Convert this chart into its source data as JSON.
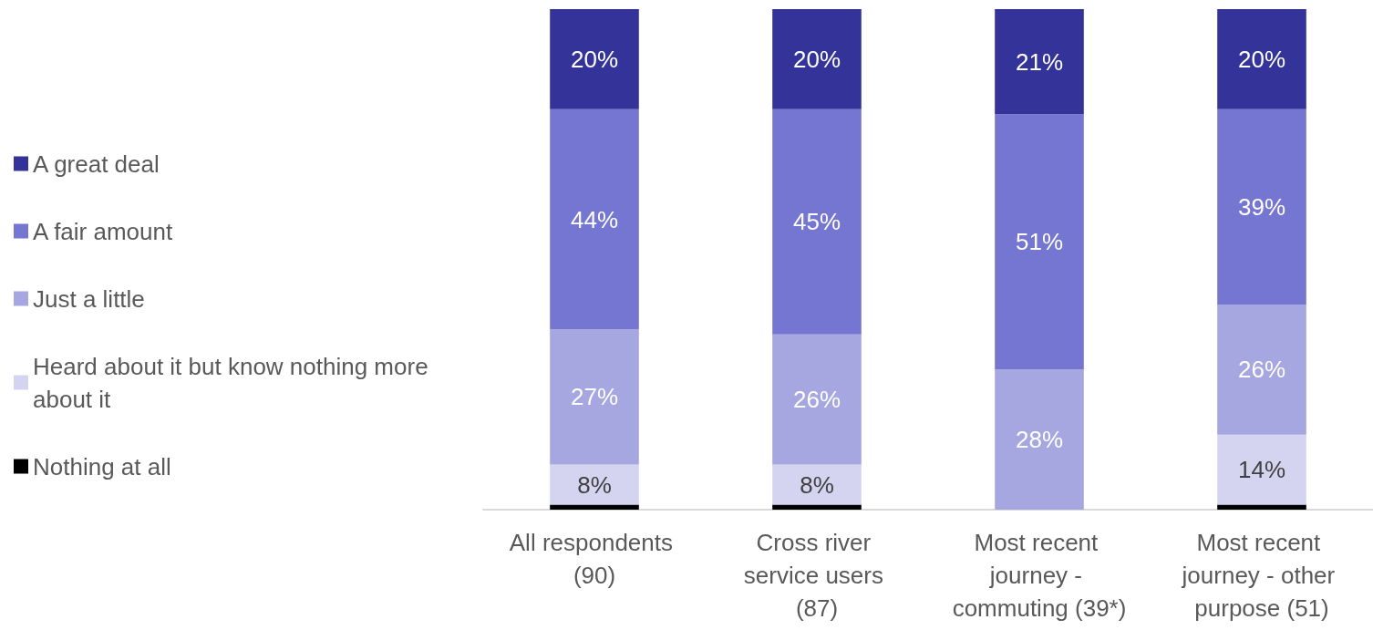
{
  "chart_data": {
    "type": "bar",
    "stacked": true,
    "legend": "left",
    "categories": [
      "All respondents (90)",
      "Cross river service users (87)",
      "Most recent journey - commuting (39*)",
      "Most recent journey - other purpose (51)"
    ],
    "series": [
      {
        "name": "Nothing at all",
        "color": "#000000",
        "values": [
          1,
          1,
          null,
          1
        ],
        "value_labels": [
          null,
          null,
          null,
          null
        ]
      },
      {
        "name": "Heard about it but know nothing more about it",
        "color": "#d4d4f0",
        "values": [
          8,
          8,
          null,
          14
        ],
        "value_labels": [
          "8%",
          "8%",
          null,
          "14%"
        ]
      },
      {
        "name": "Just a little",
        "color": "#a6a6e0",
        "values": [
          27,
          26,
          28,
          26
        ],
        "value_labels": [
          "27%",
          "26%",
          "28%",
          "26%"
        ]
      },
      {
        "name": "A fair amount",
        "color": "#7575d2",
        "values": [
          44,
          45,
          51,
          39
        ],
        "value_labels": [
          "44%",
          "45%",
          "51%",
          "39%"
        ]
      },
      {
        "name": "A great deal",
        "color": "#333399",
        "values": [
          20,
          20,
          21,
          20
        ],
        "value_labels": [
          "20%",
          "20%",
          "21%",
          "20%"
        ]
      }
    ],
    "ylim": [
      0,
      100
    ],
    "tick_labels": "x"
  }
}
